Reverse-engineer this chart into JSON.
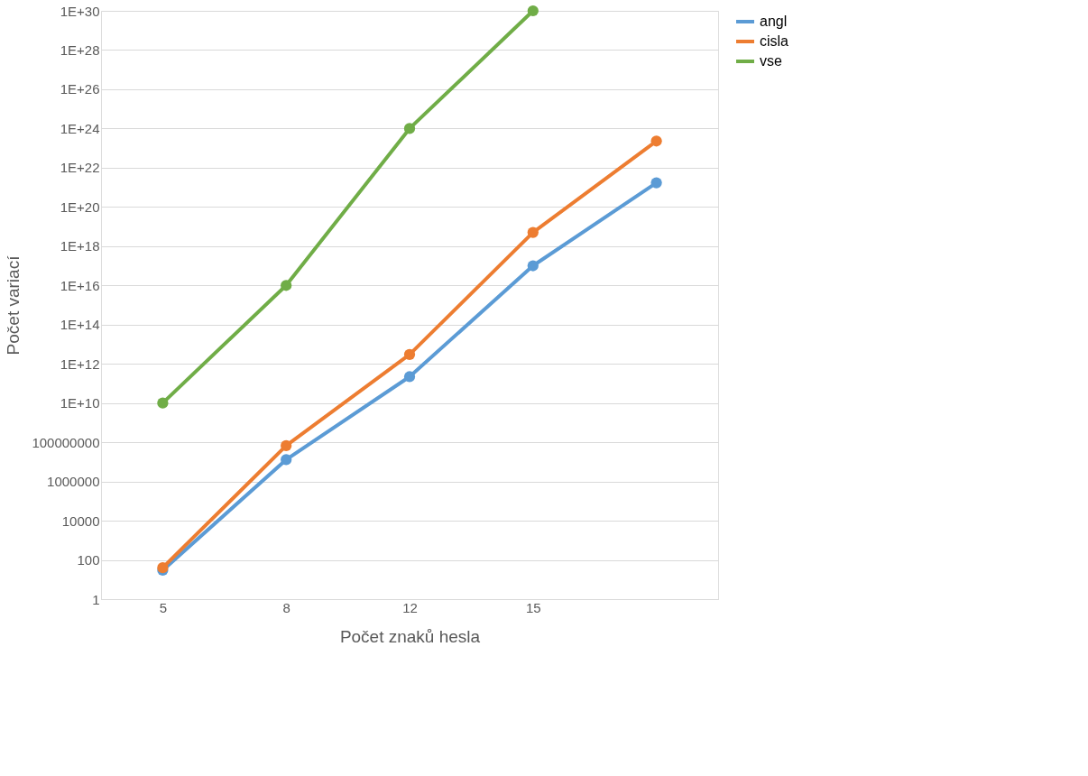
{
  "chart_data": {
    "type": "line",
    "xlabel": "Počet znaků hesla",
    "ylabel": "Počet variací",
    "categories": [
      "5",
      "8",
      "12",
      "15",
      null
    ],
    "series": [
      {
        "name": "angl",
        "color": "#5b9bd5",
        "values": [
          30,
          13000000.0,
          220000000000.0,
          1e+17,
          1.7e+21
        ]
      },
      {
        "name": "cisla",
        "color": "#ed7d31",
        "values": [
          40,
          67000000.0,
          3000000000000.0,
          5e+18,
          2.3e+23
        ]
      },
      {
        "name": "vse",
        "color": "#70ad47",
        "values": [
          10000000000.0,
          1e+16,
          1e+24,
          1e+30,
          null
        ]
      }
    ],
    "log": "y",
    "ylim": [
      1,
      1e+30
    ],
    "yticks": [
      1,
      100,
      10000,
      1000000,
      100000000,
      {
        "value": 10000000000.0,
        "label": "1E+10"
      },
      {
        "value": 1000000000000.0,
        "label": "1E+12"
      },
      {
        "value": 100000000000000.0,
        "label": "1E+14"
      },
      {
        "value": 1e+16,
        "label": "1E+16"
      },
      {
        "value": 1e+18,
        "label": "1E+18"
      },
      {
        "value": 1e+20,
        "label": "1E+20"
      },
      {
        "value": 1e+22,
        "label": "1E+22"
      },
      {
        "value": 1e+24,
        "label": "1E+24"
      },
      {
        "value": 1e+26,
        "label": "1E+26"
      },
      {
        "value": 1e+28,
        "label": "1E+28"
      },
      {
        "value": 1e+30,
        "label": "1E+30"
      }
    ],
    "grid": "y",
    "legend": "right",
    "marker": "circle",
    "line_style": "solid"
  }
}
